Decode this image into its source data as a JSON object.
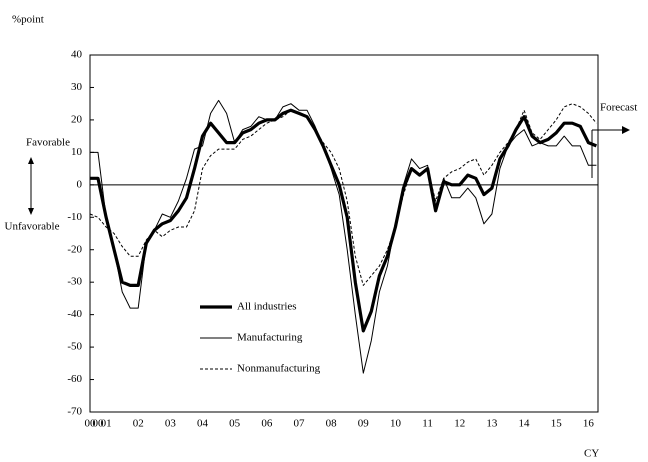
{
  "chart_data": {
    "type": "line",
    "y_label": "%point",
    "x_label": "CY",
    "annotations": {
      "favorable": "Favorable",
      "unfavorable": "Unfavorable",
      "forecast": "Forecast"
    },
    "x": [
      2001,
      2001.25,
      2001.5,
      2001.75,
      2002,
      2002.25,
      2002.5,
      2002.75,
      2003,
      2003.25,
      2003.5,
      2003.75,
      2004,
      2004.25,
      2004.5,
      2004.75,
      2005,
      2005.25,
      2005.5,
      2005.75,
      2006,
      2006.25,
      2006.5,
      2006.75,
      2007,
      2007.25,
      2007.5,
      2007.75,
      2008,
      2008.25,
      2008.5,
      2008.75,
      2009,
      2009.25,
      2009.5,
      2009.75,
      2010,
      2010.25,
      2010.5,
      2010.75,
      2011,
      2011.25,
      2011.5,
      2011.75,
      2012,
      2012.25,
      2012.5,
      2012.75,
      2013,
      2013.25,
      2013.5,
      2013.75,
      2014,
      2014.25,
      2014.5,
      2014.75,
      2015,
      2015.25,
      2015.5,
      2015.75,
      2016,
      2016.25,
      2016.5,
      2016.75
    ],
    "xlim": [
      2001,
      2016.8
    ],
    "xticks": [
      {
        "value": 2001.0,
        "label": "00"
      },
      {
        "value": 2001.25,
        "label": "00"
      },
      {
        "value": 2001.5,
        "label": "01"
      },
      {
        "value": 2002.5,
        "label": "02"
      },
      {
        "value": 2003.5,
        "label": "03"
      },
      {
        "value": 2004.5,
        "label": "04"
      },
      {
        "value": 2005.5,
        "label": "05"
      },
      {
        "value": 2006.5,
        "label": "06"
      },
      {
        "value": 2007.5,
        "label": "07"
      },
      {
        "value": 2008.5,
        "label": "08"
      },
      {
        "value": 2009.5,
        "label": "09"
      },
      {
        "value": 2010.5,
        "label": "10"
      },
      {
        "value": 2011.5,
        "label": "11"
      },
      {
        "value": 2012.5,
        "label": "12"
      },
      {
        "value": 2013.5,
        "label": "13"
      },
      {
        "value": 2014.5,
        "label": "14"
      },
      {
        "value": 2015.5,
        "label": "15"
      },
      {
        "value": 2016.5,
        "label": "16"
      }
    ],
    "ylim": [
      -70,
      40
    ],
    "yticks": [
      40,
      30,
      20,
      10,
      0,
      -10,
      -20,
      -30,
      -40,
      -50,
      -60,
      -70
    ],
    "series": [
      {
        "name": "All industries",
        "color": "#000000",
        "line_width": 3.2,
        "dash": false,
        "values": [
          2,
          2,
          -10,
          -20,
          -30,
          -31,
          -31,
          -18,
          -14,
          -12,
          -11,
          -8,
          -4,
          5,
          15,
          19,
          16,
          13,
          13,
          16,
          17,
          19,
          20,
          20,
          22,
          23,
          22,
          21,
          17,
          12,
          6,
          0,
          -10,
          -30,
          -45,
          -39,
          -28,
          -22,
          -13,
          -1,
          5,
          3,
          5,
          -8,
          1,
          0,
          0,
          3,
          2,
          -3,
          -1,
          8,
          12,
          17,
          21,
          15,
          13,
          14,
          16,
          19,
          19,
          18,
          13,
          12
        ]
      },
      {
        "name": "Manufacturing",
        "color": "#000000",
        "line_width": 1,
        "dash": false,
        "values": [
          10,
          10,
          -10,
          -20,
          -33,
          -38,
          -38,
          -18,
          -14,
          -9,
          -10,
          -5,
          2,
          11,
          12,
          22,
          26,
          22,
          13,
          17,
          18,
          21,
          20,
          20,
          24,
          25,
          23,
          23,
          18,
          12,
          5,
          -3,
          -20,
          -40,
          -58,
          -48,
          -33,
          -25,
          -12,
          0,
          8,
          5,
          6,
          -7,
          2,
          -4,
          -4,
          -1,
          -4,
          -12,
          -9,
          5,
          12,
          15,
          17,
          12,
          13,
          12,
          12,
          15,
          12,
          12,
          6,
          6
        ]
      },
      {
        "name": "Nonmanufacturing",
        "color": "#000000",
        "line_width": 1,
        "dash": true,
        "values": [
          -9,
          -10,
          -13,
          -15,
          -19,
          -22,
          -22,
          -17,
          -14,
          -16,
          -14,
          -13,
          -13,
          -8,
          5,
          9,
          11,
          11,
          11,
          14,
          15,
          17,
          19,
          20,
          21,
          23,
          22,
          21,
          17,
          13,
          10,
          5,
          -5,
          -22,
          -31,
          -28,
          -25,
          -20,
          -13,
          -3,
          5,
          3,
          5,
          -5,
          2,
          4,
          5,
          7,
          8,
          3,
          6,
          10,
          13,
          17,
          23,
          16,
          14,
          17,
          20,
          24,
          25,
          24,
          22,
          19
        ]
      }
    ]
  }
}
